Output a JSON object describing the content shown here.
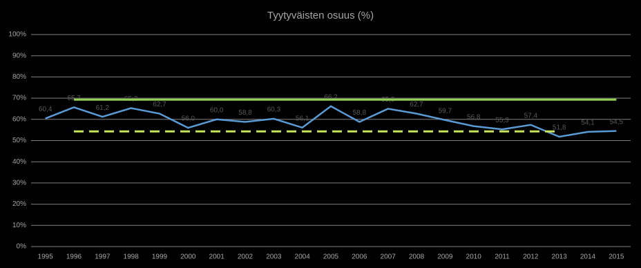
{
  "chart_data": {
    "type": "line",
    "title": "Tyytyväisten osuus (%)",
    "categories": [
      "1995",
      "1996",
      "1997",
      "1998",
      "1999",
      "2000",
      "2001",
      "2002",
      "2003",
      "2004",
      "2005",
      "2006",
      "2007",
      "2008",
      "2009",
      "2010",
      "2011",
      "2012",
      "2013",
      "2014",
      "2015"
    ],
    "series": [
      {
        "color": "#5b9bd5",
        "dash": false,
        "values": [
          60.4,
          65.7,
          61.2,
          65.3,
          62.7,
          56.0,
          60.0,
          58.8,
          60.3,
          56.1,
          66.2,
          58.8,
          65.0,
          62.7,
          59.7,
          56.8,
          55.3,
          57.4,
          51.8,
          54.1,
          54.5
        ],
        "value_labels": [
          "60,4",
          "65,7",
          "61,2",
          "65,3",
          "62,7",
          "56,0",
          "60,0",
          "58,8",
          "60,3",
          "56,1",
          "66,2",
          "58,8",
          "65,0",
          "62,7",
          "59,7",
          "56,8",
          "55,3",
          "57,4",
          "51,8",
          "54,1",
          "54,5"
        ]
      },
      {
        "color": "#92d050",
        "dash": false,
        "values": [
          null,
          69.3,
          69.3,
          69.3,
          69.3,
          69.3,
          69.3,
          69.3,
          69.3,
          69.3,
          69.3,
          69.3,
          69.3,
          69.3,
          69.3,
          69.3,
          69.3,
          69.3,
          69.3,
          69.3,
          69.3
        ]
      },
      {
        "color": "#c6e35a",
        "dash": true,
        "values": [
          null,
          54.3,
          54.3,
          54.3,
          54.3,
          54.3,
          54.3,
          54.3,
          54.3,
          54.3,
          54.3,
          54.3,
          54.3,
          54.3,
          54.3,
          54.3,
          54.3,
          54.3,
          54.3,
          null,
          null
        ]
      }
    ],
    "ylim": [
      0,
      100
    ],
    "yticks": [
      {
        "value": 0,
        "label": "0%"
      },
      {
        "value": 10,
        "label": "10%"
      },
      {
        "value": 20,
        "label": "20%"
      },
      {
        "value": 30,
        "label": "30%"
      },
      {
        "value": 40,
        "label": "40%"
      },
      {
        "value": 50,
        "label": "50%"
      },
      {
        "value": 60,
        "label": "60%"
      },
      {
        "value": 70,
        "label": "70%"
      },
      {
        "value": 80,
        "label": "80%"
      },
      {
        "value": 90,
        "label": "90%"
      },
      {
        "value": 100,
        "label": "100%"
      }
    ],
    "grid": true
  }
}
